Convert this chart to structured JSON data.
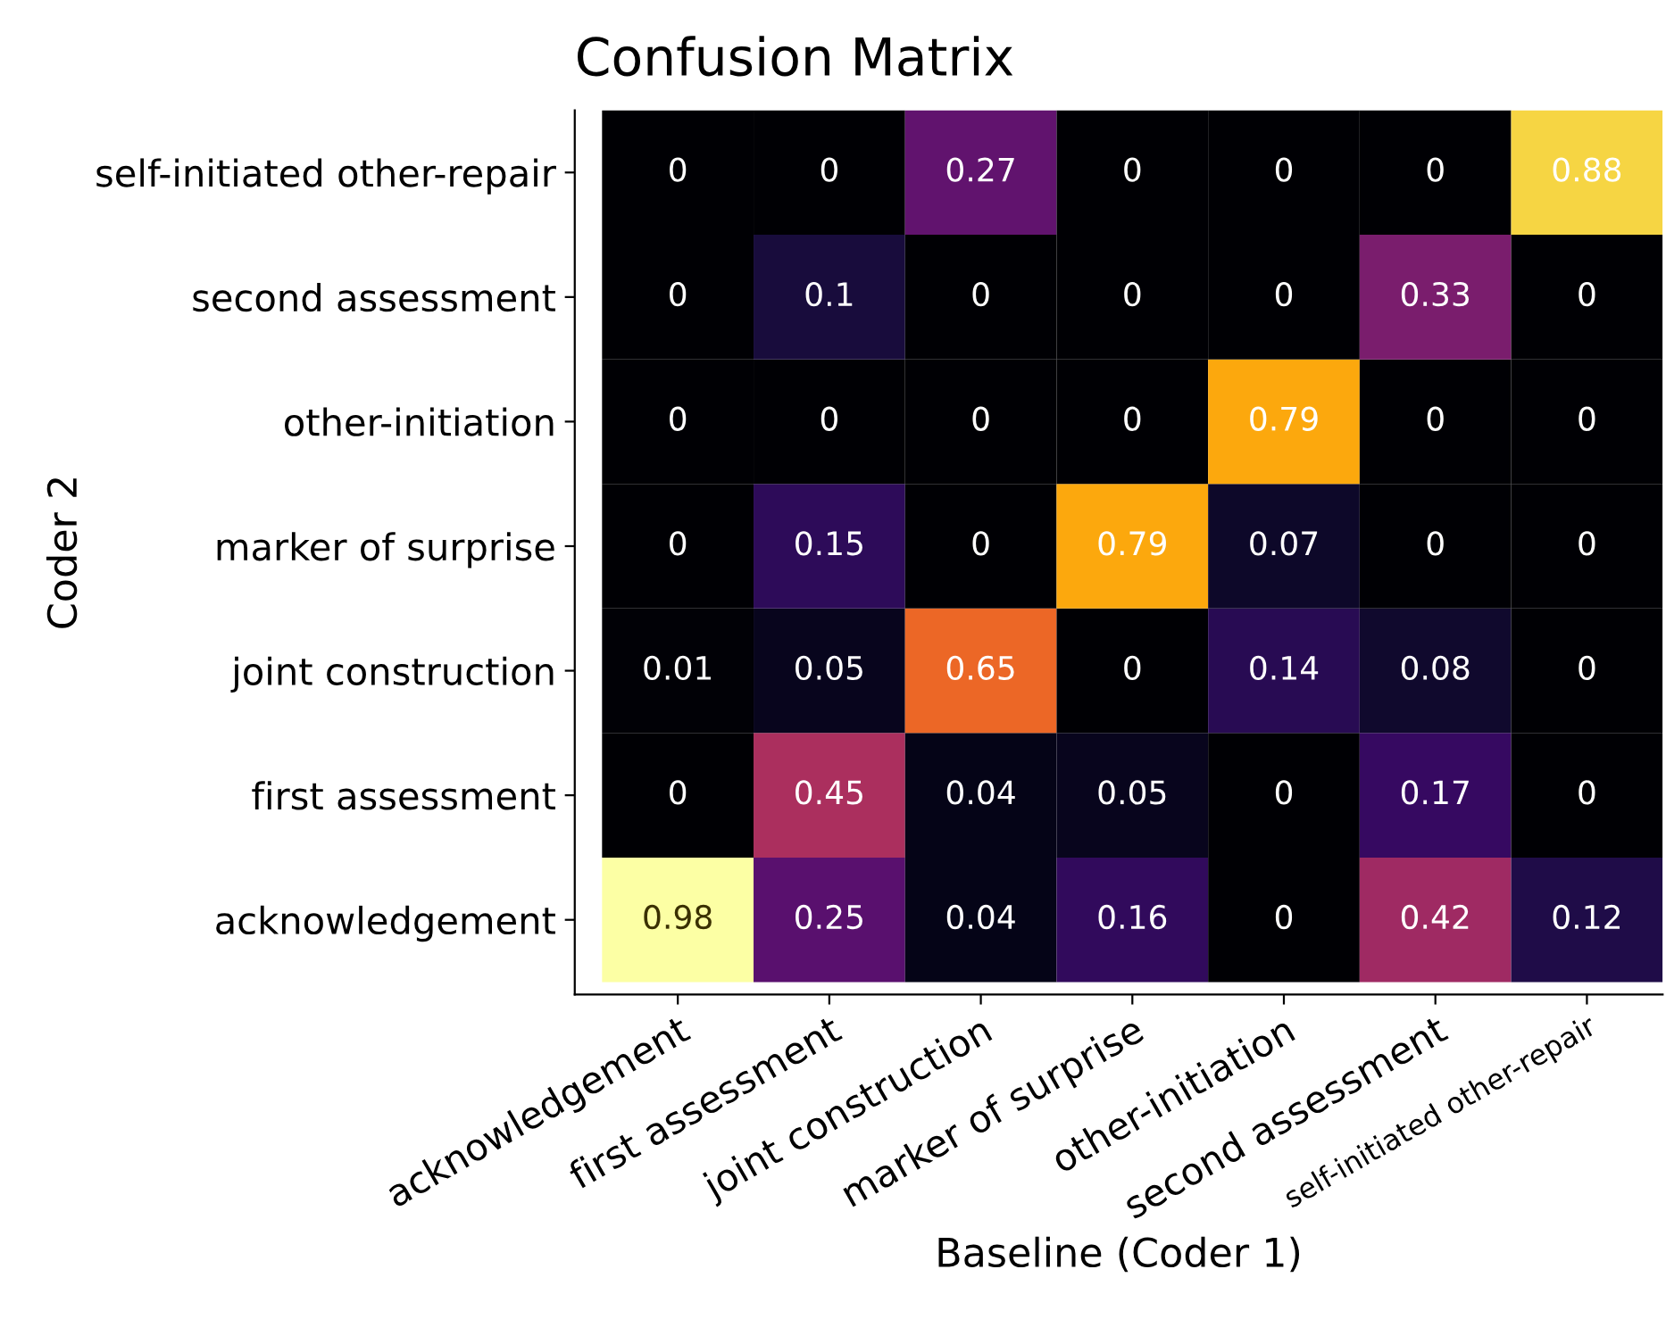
{
  "chart_data": {
    "type": "heatmap",
    "title": "Confusion Matrix",
    "xlabel": "Baseline (Coder 1)",
    "ylabel": "Coder 2",
    "categories": [
      "acknowledgement",
      "first assessment",
      "joint construction",
      "marker of surprise",
      "other-initiation",
      "second assessment",
      "self-initiated other-repair"
    ],
    "y_categories": [
      "self-initiated other-repair",
      "second assessment",
      "other-initiation",
      "marker of surprise",
      "joint construction",
      "first assessment",
      "acknowledgement"
    ],
    "cells": [
      [
        0,
        0,
        0.27,
        0,
        0,
        0,
        0.88
      ],
      [
        0,
        0.1,
        0,
        0,
        0,
        0.33,
        0
      ],
      [
        0,
        0,
        0,
        0,
        0.79,
        0,
        0
      ],
      [
        0,
        0.15,
        0,
        0.79,
        0.07,
        0,
        0
      ],
      [
        0.01,
        0.05,
        0.65,
        0,
        0.14,
        0.08,
        0
      ],
      [
        0,
        0.45,
        0.04,
        0.05,
        0,
        0.17,
        0
      ],
      [
        0.98,
        0.25,
        0.04,
        0.16,
        0,
        0.42,
        0.12
      ]
    ],
    "data_labels": true
  }
}
